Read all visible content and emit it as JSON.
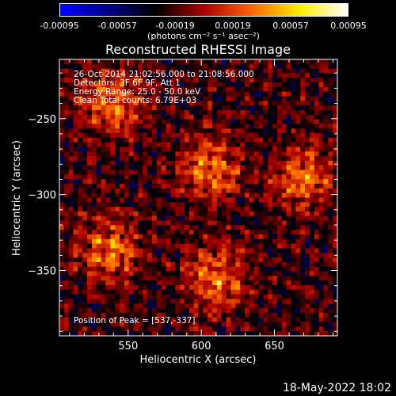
{
  "colorbar": {
    "ticks": [
      "-0.00095",
      "-0.00057",
      "-0.00019",
      "0.00019",
      "0.00057",
      "0.00095"
    ],
    "unit": "(photons cm⁻² s⁻¹ asec⁻²)",
    "colors": [
      "#0000ff",
      "#000088",
      "#000000",
      "#aa0000",
      "#ff6600",
      "#ffee00",
      "#ffffff"
    ]
  },
  "chart_data": {
    "type": "heatmap",
    "title": "Reconstructed RHESSI Image",
    "xlabel": "Heliocentric X (arcsec)",
    "ylabel": "Heliocentric Y (arcsec)",
    "xlim": [
      503,
      693
    ],
    "ylim": [
      -393,
      -211
    ],
    "x_ticks": [
      550,
      600,
      650
    ],
    "y_ticks": [
      -250,
      -300,
      -350
    ],
    "annotations": [
      "26-Oct-2014 21:02:56.000 to 21:08:56.000",
      "Detectors: 3F 6F 9F, Att 1",
      "Energy Range: 25.0 - 50.0 keV",
      "Clean     Total counts: 6.79E+03"
    ],
    "peak_label": "Position of Peak = [537,-337]",
    "bright_sources": [
      {
        "x": 537,
        "y": -337
      },
      {
        "x": 540,
        "y": -240
      },
      {
        "x": 605,
        "y": -283
      },
      {
        "x": 670,
        "y": -290
      },
      {
        "x": 610,
        "y": -355
      }
    ],
    "intensity_scale": {
      "min": -0.00095,
      "max": 0.00095
    }
  },
  "timestamp": "18-May-2022 18:02"
}
